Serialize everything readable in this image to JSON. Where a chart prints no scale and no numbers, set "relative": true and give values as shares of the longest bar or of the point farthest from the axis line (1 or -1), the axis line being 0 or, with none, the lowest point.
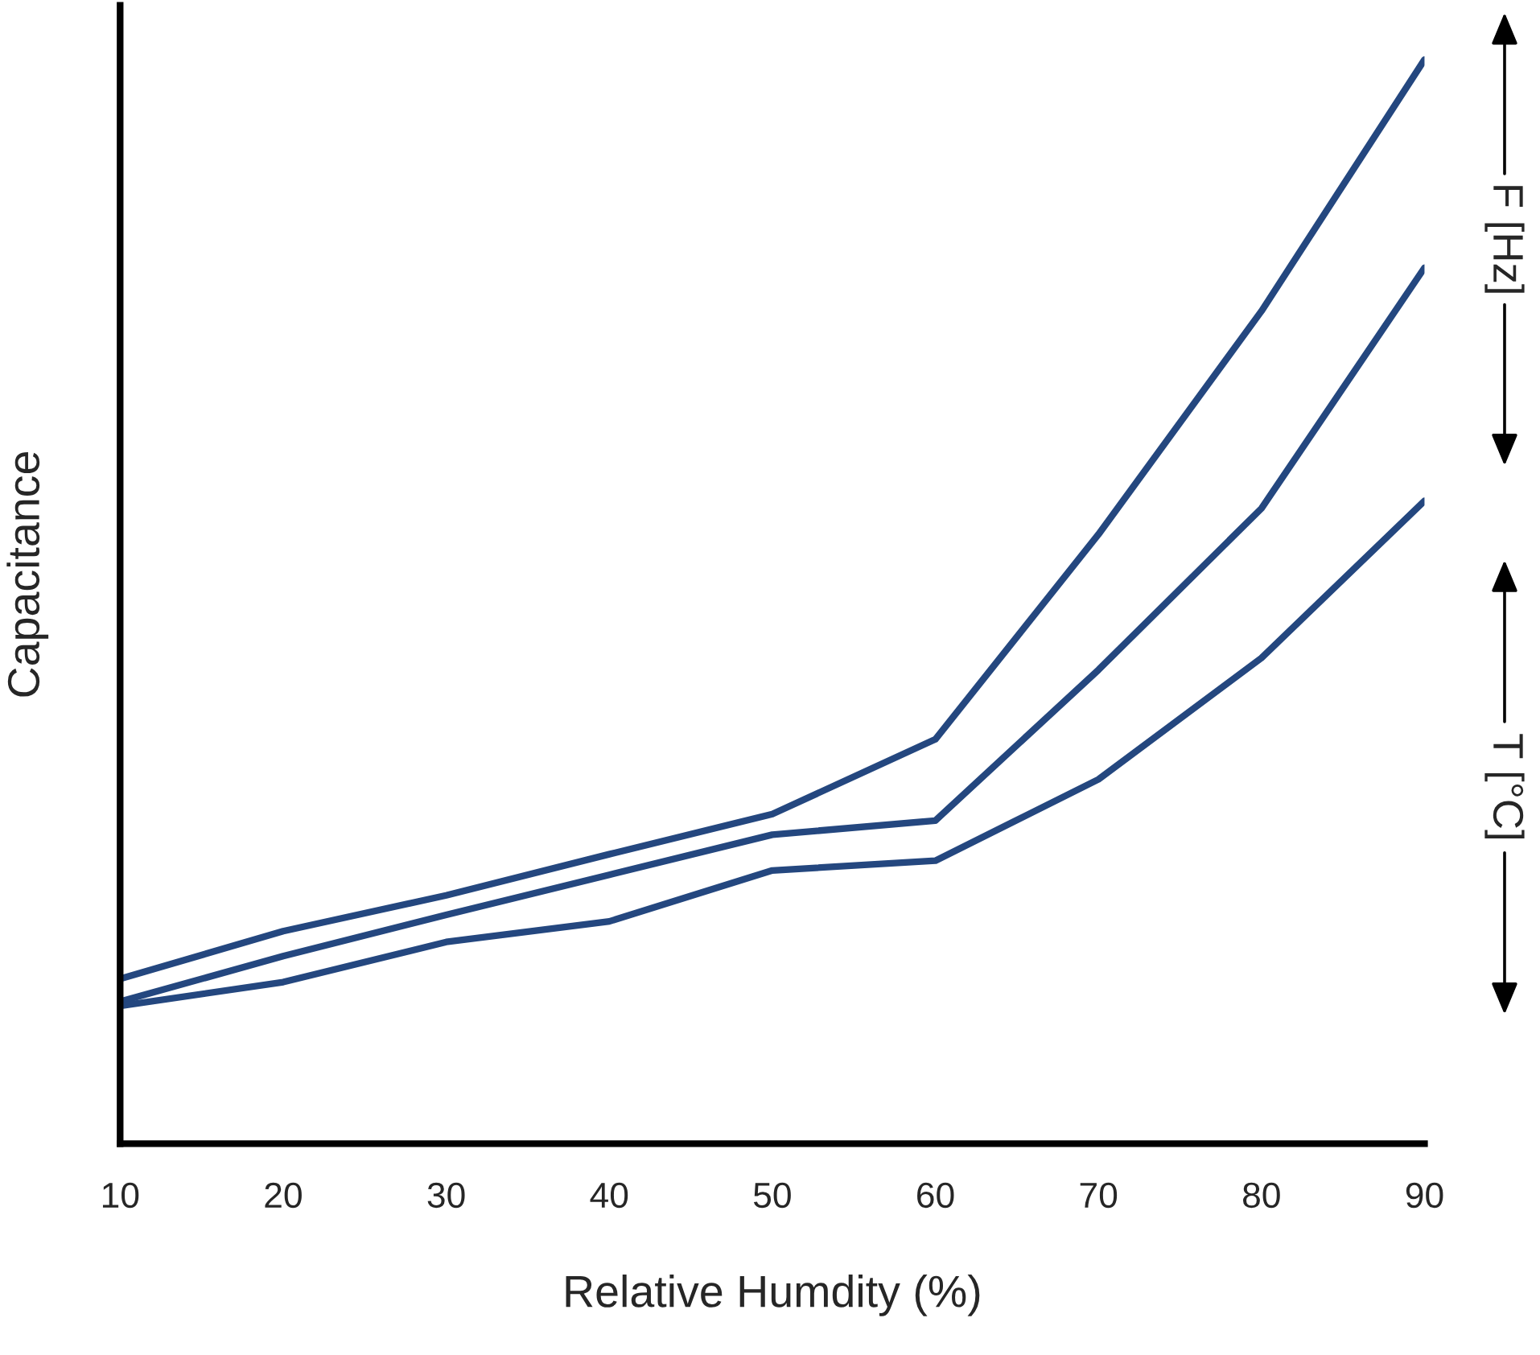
{
  "chart_data": {
    "type": "line",
    "relative": true,
    "xlabel": "Relative Humdity (%)",
    "ylabel": "Capacitance",
    "x": [
      10,
      20,
      30,
      40,
      50,
      60,
      70,
      80,
      90
    ],
    "xlim": [
      10,
      90
    ],
    "xticks": [
      10,
      20,
      30,
      40,
      50,
      60,
      70,
      80,
      90
    ],
    "series": [
      {
        "color": "#24477f",
        "values": [
          0.152,
          0.196,
          0.229,
          0.267,
          0.304,
          0.373,
          0.562,
          0.768,
          1.0
        ]
      },
      {
        "color": "#24477f",
        "values": [
          0.131,
          0.173,
          0.211,
          0.248,
          0.285,
          0.298,
          0.437,
          0.586,
          0.808
        ]
      },
      {
        "color": "#24477f",
        "values": [
          0.127,
          0.149,
          0.186,
          0.205,
          0.252,
          0.261,
          0.336,
          0.448,
          0.593
        ]
      }
    ],
    "annotations": [
      "F [Hz]",
      "T [°C]"
    ],
    "grid": false,
    "legend": false,
    "marker": "none",
    "line_style": "solid"
  }
}
